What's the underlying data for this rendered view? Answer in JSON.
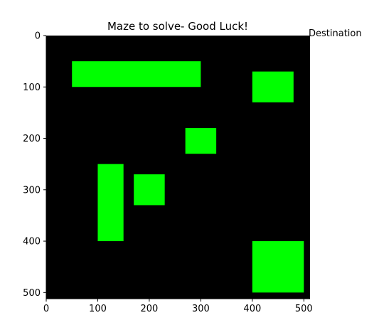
{
  "chart_data": {
    "type": "heatmap",
    "title": "Maze to solve- Good Luck!",
    "xlabel": "",
    "ylabel": "",
    "xlim": [
      0,
      512
    ],
    "ylim": [
      512,
      0
    ],
    "y_inverted": true,
    "grid": false,
    "background_color": "#000000",
    "obstacle_color": "#00ff00",
    "x_ticks": [
      "0",
      "100",
      "200",
      "300",
      "400",
      "500"
    ],
    "y_ticks": [
      "0",
      "100",
      "200",
      "300",
      "400",
      "500"
    ],
    "x_tick_values": [
      0,
      100,
      200,
      300,
      400,
      500
    ],
    "y_tick_values": [
      0,
      100,
      200,
      300,
      400,
      500
    ],
    "annotations": [
      {
        "text": "Destination",
        "x": 512,
        "y": 0
      }
    ],
    "blocks": [
      {
        "x0": 50,
        "y0": 50,
        "x1": 300,
        "y1": 100
      },
      {
        "x0": 400,
        "y0": 70,
        "x1": 480,
        "y1": 130
      },
      {
        "x0": 270,
        "y0": 180,
        "x1": 330,
        "y1": 230
      },
      {
        "x0": 100,
        "y0": 250,
        "x1": 150,
        "y1": 400
      },
      {
        "x0": 170,
        "y0": 270,
        "x1": 230,
        "y1": 330
      },
      {
        "x0": 400,
        "y0": 400,
        "x1": 500,
        "y1": 500
      }
    ]
  }
}
